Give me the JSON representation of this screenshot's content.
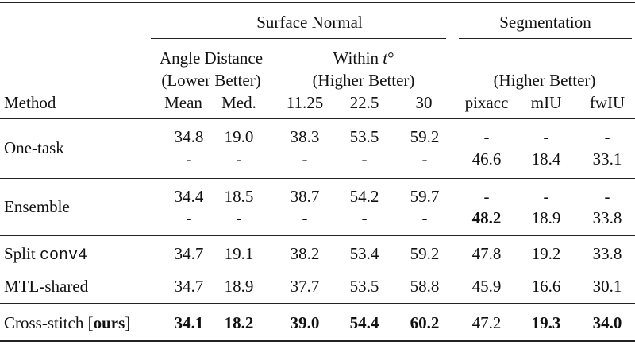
{
  "groups": {
    "surface_normal": "Surface Normal",
    "segmentation": "Segmentation"
  },
  "subgroups": {
    "angle_line1": "Angle Distance",
    "angle_line2": "(Lower Better)",
    "within_line1": "Within ",
    "within_t": "t",
    "within_deg": "°",
    "within_line2": "(Higher Better)",
    "seg_line2": "(Higher Better)"
  },
  "columns": {
    "method": "Method",
    "mean": "Mean",
    "med": "Med.",
    "w1125": "11.25",
    "w225": "22.5",
    "w30": "30",
    "pixacc": "pixacc",
    "miu": "mIU",
    "fwiu": "fwIU"
  },
  "rows": [
    {
      "method": "One-task",
      "line1": [
        "34.8",
        "19.0",
        "38.3",
        "53.5",
        "59.2",
        "-",
        "-",
        "-"
      ],
      "line2": [
        "-",
        "-",
        "-",
        "-",
        "-",
        "46.6",
        "18.4",
        "33.1"
      ]
    },
    {
      "method": "Ensemble",
      "line1": [
        "34.4",
        "18.5",
        "38.7",
        "54.2",
        "59.7",
        "-",
        "-",
        "-"
      ],
      "line2": [
        "-",
        "-",
        "-",
        "-",
        "-",
        "48.2",
        "18.9",
        "33.8"
      ]
    },
    {
      "method_prefix": "Split ",
      "method_code": "conv4",
      "values": [
        "34.7",
        "19.1",
        "38.2",
        "53.4",
        "59.2",
        "47.8",
        "19.2",
        "33.8"
      ]
    },
    {
      "method": "MTL-shared",
      "values": [
        "34.7",
        "18.9",
        "37.7",
        "53.5",
        "58.8",
        "45.9",
        "16.6",
        "30.1"
      ]
    },
    {
      "method_prefix": "Cross-stitch [",
      "method_bold": "ours",
      "method_suffix": "]",
      "values": [
        "34.1",
        "18.2",
        "39.0",
        "54.4",
        "60.2",
        "47.2",
        "19.3",
        "34.0"
      ]
    }
  ]
}
